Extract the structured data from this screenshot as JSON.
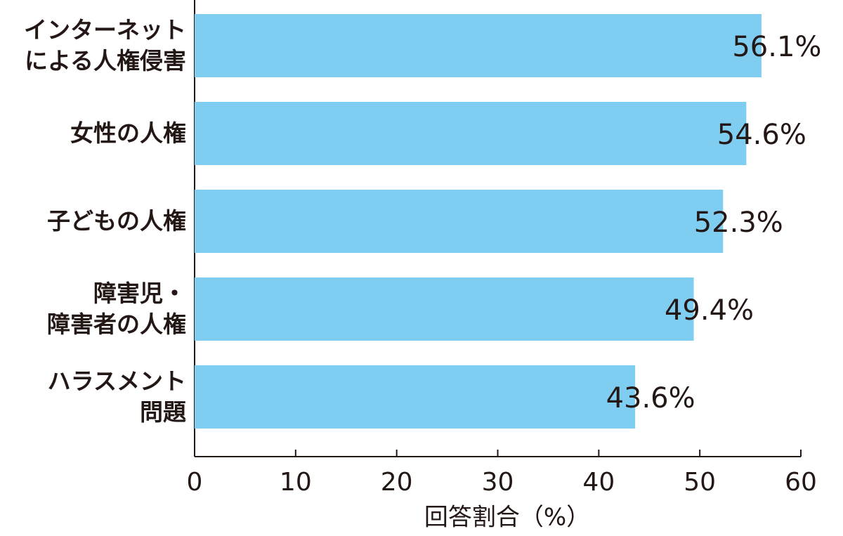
{
  "chart_data": {
    "type": "barh",
    "categories": [
      "インターネット\nによる人権侵害",
      "女性の人権",
      "子どもの人権",
      "障害児・\n障害者の人権",
      "ハラスメント\n問題"
    ],
    "values": [
      56.1,
      54.6,
      52.3,
      49.4,
      43.6
    ],
    "value_labels": [
      "56.1%",
      "54.6%",
      "52.3%",
      "49.4%",
      "43.6%"
    ],
    "color": "#7fcdf1",
    "xlim": [
      0,
      60
    ],
    "xticks": [
      0,
      10,
      20,
      30,
      40,
      50,
      60
    ],
    "xlabel": "回答割合（%）"
  }
}
